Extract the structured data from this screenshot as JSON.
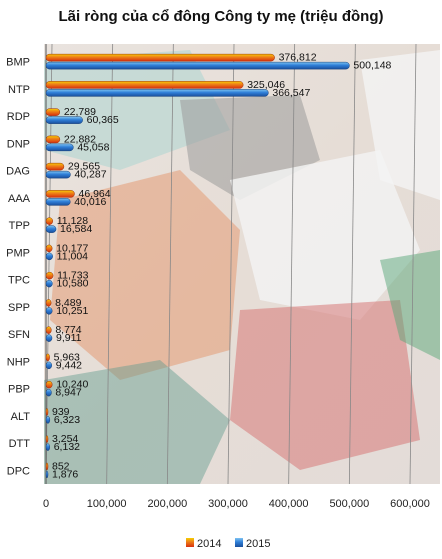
{
  "chart_data": {
    "type": "bar",
    "orientation": "horizontal",
    "title": "Lãi ròng của cổ đông Công ty mẹ (triệu đồng)",
    "categories": [
      "BMP",
      "NTP",
      "RDP",
      "DNP",
      "DAG",
      "AAA",
      "TPP",
      "PMP",
      "TPC",
      "SPP",
      "SFN",
      "NHP",
      "PBP",
      "ALT",
      "DTT",
      "DPC"
    ],
    "series": [
      {
        "name": "2014",
        "values": [
          376812,
          325046,
          22789,
          22882,
          29565,
          46964,
          11128,
          10177,
          11733,
          8489,
          8774,
          5963,
          10240,
          939,
          3254,
          852
        ]
      },
      {
        "name": "2015",
        "values": [
          500148,
          366547,
          60365,
          45058,
          40287,
          40016,
          16584,
          11004,
          10580,
          10251,
          9911,
          9442,
          8947,
          6323,
          6132,
          1876
        ]
      }
    ],
    "data_labels": {
      "2014": [
        "376,812",
        "325,046",
        "22,789",
        "22,882",
        "29,565",
        "46,964",
        "11,128",
        "10,177",
        "11,733",
        "8,489",
        "8,774",
        "5,963",
        "10,240",
        "939",
        "3,254",
        "852"
      ],
      "2015": [
        "500,148",
        "366,547",
        "60,365",
        "45,058",
        "40,287",
        "40,016",
        "16,584",
        "11,004",
        "10,580",
        "10,251",
        "9,911",
        "9,442",
        "8,947",
        "6,323",
        "6,132",
        "1,876"
      ]
    },
    "x_ticks": [
      "0",
      "100,000",
      "200,000",
      "300,000",
      "400,000",
      "500,000",
      "600,000"
    ],
    "xlim": [
      0,
      600000
    ],
    "legend": {
      "position": "bottom",
      "items": [
        "2014",
        "2015"
      ]
    },
    "colors": {
      "2014": "#e8481a",
      "2015": "#2f7fd8",
      "accent_2014": "#f5d000",
      "gridline": "#888888"
    },
    "grid": true
  }
}
